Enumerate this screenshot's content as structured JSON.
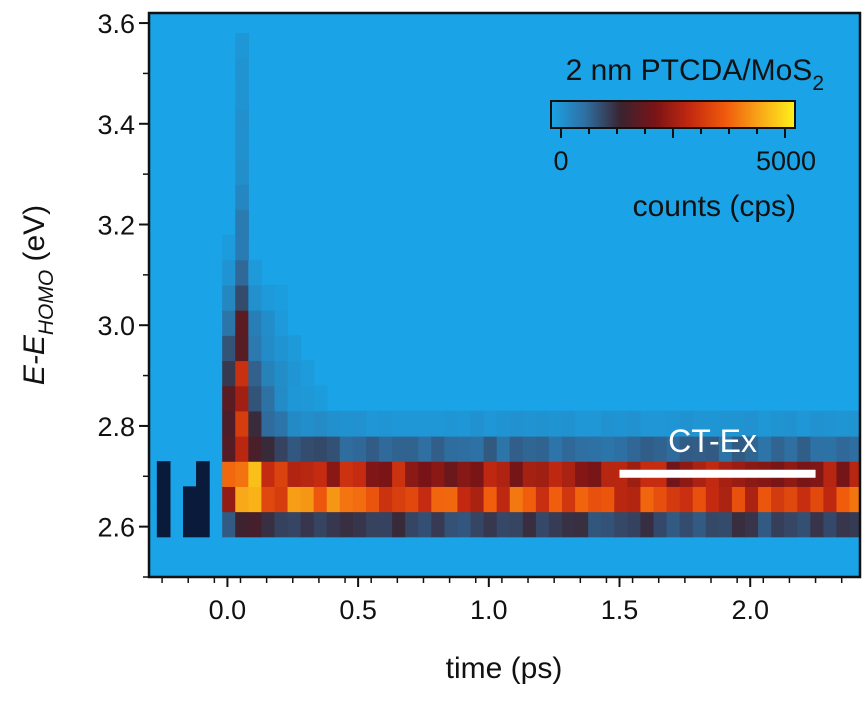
{
  "chart_data": {
    "type": "heatmap",
    "title": "2 nm PTCDA/MoS",
    "title_subscript": "2",
    "xlabel": "time (ps)",
    "ylabel": {
      "prefix": "E-E",
      "subscript": "HOMO",
      "suffix": " (eV)"
    },
    "xlim": [
      -0.3,
      2.42
    ],
    "ylim": [
      2.5,
      3.62
    ],
    "x_ticks": [
      {
        "value": 0.0,
        "label": "0.0"
      },
      {
        "value": 0.5,
        "label": "0.5"
      },
      {
        "value": 1.0,
        "label": "1.0"
      },
      {
        "value": 1.5,
        "label": "1.5"
      },
      {
        "value": 2.0,
        "label": "2.0"
      }
    ],
    "y_ticks": [
      {
        "value": 2.6,
        "label": "2.6"
      },
      {
        "value": 2.8,
        "label": "2.8"
      },
      {
        "value": 3.0,
        "label": "3.0"
      },
      {
        "value": 3.2,
        "label": "3.2"
      },
      {
        "value": 3.4,
        "label": "3.4"
      },
      {
        "value": 3.6,
        "label": "3.6"
      }
    ],
    "colorbar": {
      "min": 0,
      "max": 5000,
      "min_label": "0",
      "max_label": "5000",
      "label": "counts (cps)",
      "colors": [
        "#1aa3e6",
        "#2f6ea0",
        "#3a2330",
        "#7a1416",
        "#c42a10",
        "#f05a0c",
        "#f8a818",
        "#fff11a"
      ]
    },
    "background_color": "#1aa3e6",
    "annotation": {
      "text": "CT-Ex",
      "x_start": 1.5,
      "x_end": 2.25,
      "y": 2.705
    },
    "grid": false,
    "legend": "none",
    "time_bin_width": 0.05,
    "energy_bin_width": 0.05,
    "energy_band": {
      "center": 2.67,
      "width": 0.06,
      "lower_edge": 2.57,
      "upper_edge": 2.9,
      "tail_width": 0.09,
      "peak_counts": 4800,
      "plateau_counts": 3400,
      "rise_time": 0.02,
      "decay_time": 0.25,
      "hot_tail_counts": 3000,
      "hot_tail_center": 2.85,
      "hot_tail_width": 0.18,
      "hot_tail_decay": 0.09
    },
    "pre_time_zero": {
      "dark_streaks": [
        {
          "x": -0.24,
          "energy": 2.65
        },
        {
          "x": -0.08,
          "energy": 2.67
        },
        {
          "x": -0.14,
          "energy": 2.63
        }
      ]
    },
    "time_zero_spike": {
      "x": 0.04,
      "energy_min": 2.8,
      "energy_max": 3.6
    }
  }
}
